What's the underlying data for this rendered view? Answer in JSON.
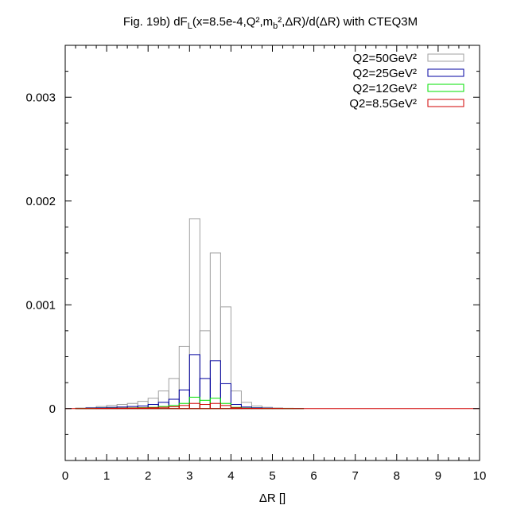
{
  "chart_data": {
    "type": "bar",
    "title": "Fig. 19b) dF_L(x=8.5e-4,Q²,m_b²,ΔR)/d(ΔR) with CTEQ3M",
    "xlabel": "ΔR []",
    "ylabel": "",
    "xlim": [
      0,
      10
    ],
    "ylim": [
      -0.0005,
      0.0035
    ],
    "xticks": [
      "0",
      "1",
      "2",
      "3",
      "4",
      "5",
      "6",
      "7",
      "8",
      "9",
      "10"
    ],
    "yticks": [
      "0",
      "0.001",
      "0.002",
      "0.003"
    ],
    "bin_width": 0.25,
    "bin_edges_start": 0.25,
    "legend_position": "top-right",
    "series": [
      {
        "name": "Q2=50GeV²",
        "color": "#a0a0a0",
        "values": [
          5e-06,
          1e-05,
          2e-05,
          3e-05,
          4e-05,
          5e-05,
          7e-05,
          0.0001,
          0.00017,
          0.00029,
          0.0006,
          0.00183,
          0.00075,
          0.0015,
          0.00098,
          0.00017,
          6e-05,
          2.5e-05,
          1.2e-05,
          6e-06,
          3e-06,
          2e-06
        ]
      },
      {
        "name": "Q2=25GeV²",
        "color": "#0000a0",
        "values": [
          2e-06,
          5e-06,
          8e-06,
          1.2e-05,
          1.5e-05,
          2e-05,
          2.5e-05,
          4e-05,
          6e-05,
          9e-05,
          0.00018,
          0.00052,
          0.00029,
          0.00046,
          0.00024,
          4e-05,
          1.5e-05,
          8e-06,
          4e-06,
          2e-06,
          1e-06,
          1e-06
        ]
      },
      {
        "name": "Q2=12GeV²",
        "color": "#00e000",
        "values": [
          1e-06,
          2e-06,
          3e-06,
          4e-06,
          5e-06,
          7e-06,
          9e-06,
          1.2e-05,
          2e-05,
          3e-05,
          5e-05,
          0.00011,
          8e-05,
          0.0001,
          5e-05,
          1.2e-05,
          5e-06,
          3e-06,
          2e-06,
          1e-06,
          1e-06,
          0.0
        ]
      },
      {
        "name": "Q2=8.5GeV²",
        "color": "#d00000",
        "values": [
          0.0,
          1e-06,
          2e-06,
          3e-06,
          4e-06,
          5e-06,
          6e-06,
          8e-06,
          1.2e-05,
          1.8e-05,
          3e-05,
          5e-05,
          4e-05,
          5e-05,
          3e-05,
          8e-06,
          3e-06,
          2e-06,
          1e-06,
          1e-06,
          0.0,
          0.0
        ]
      }
    ]
  }
}
